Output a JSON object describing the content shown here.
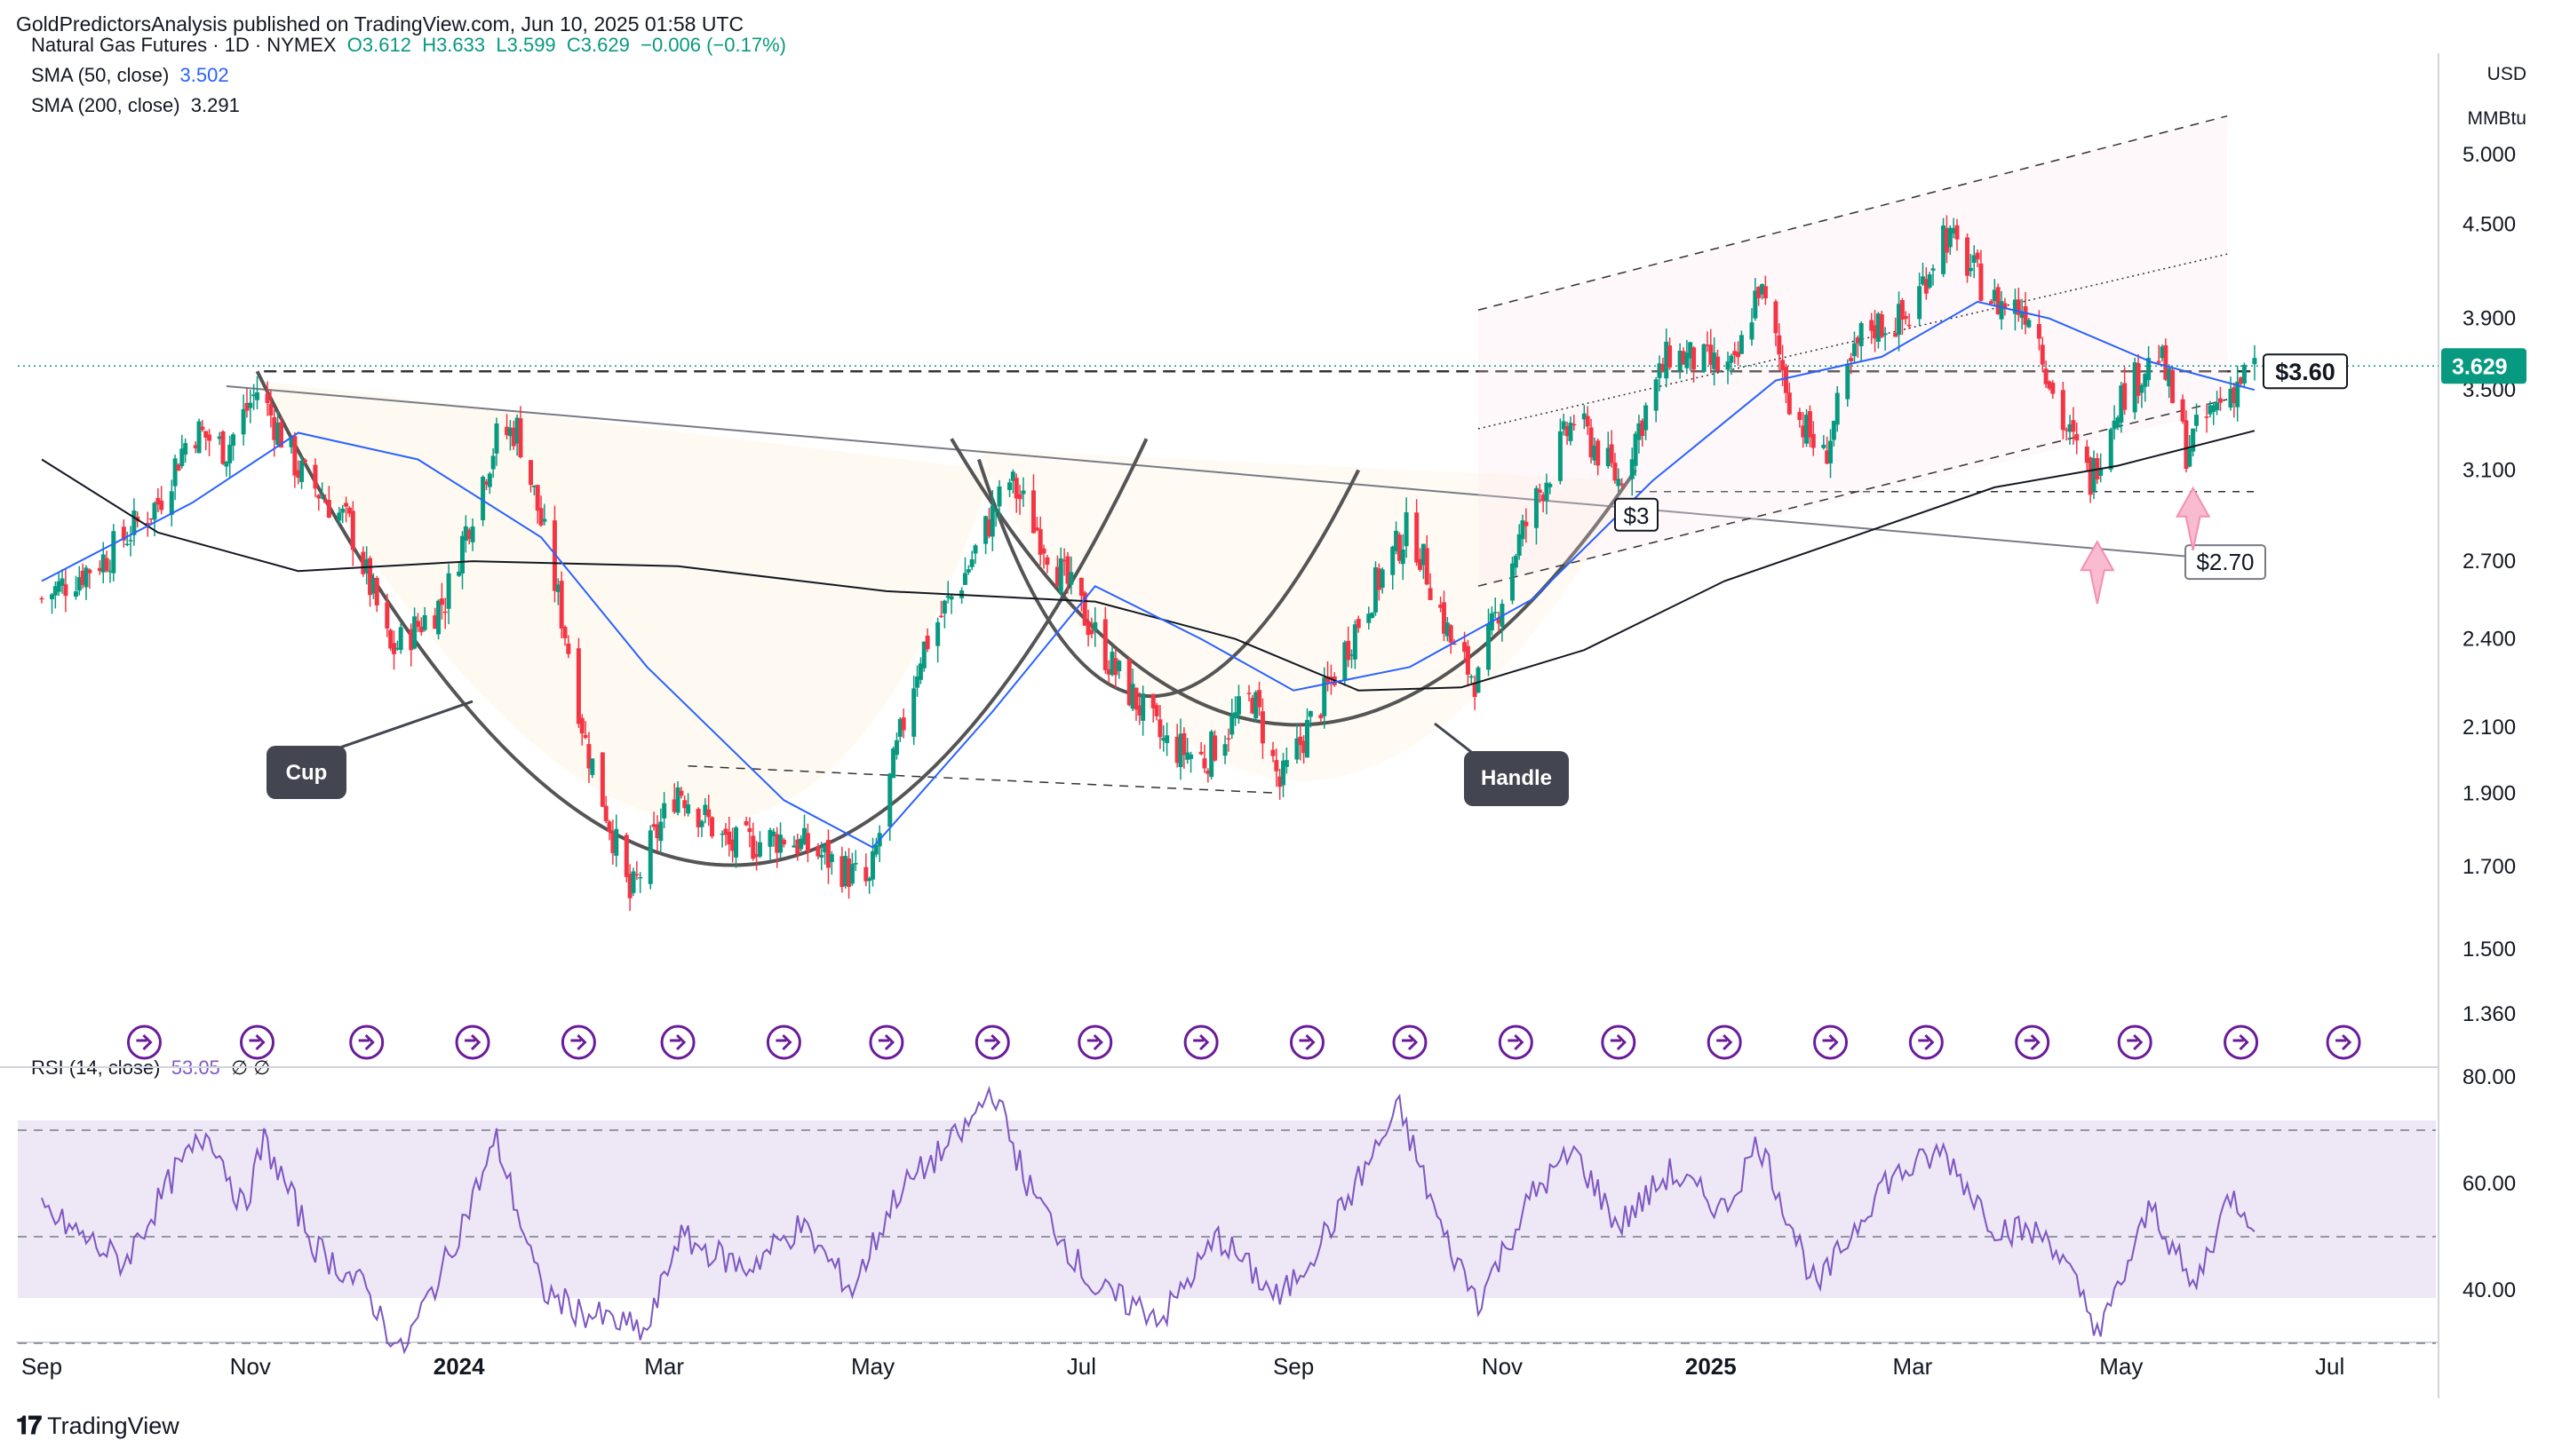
{
  "publisher": "GoldPredictorsAnalysis published on TradingView.com, Jun 10, 2025 01:58 UTC",
  "legend": {
    "symbol_line": "Natural Gas Futures · 1D · NYMEX",
    "open": "O3.612",
    "high": "H3.633",
    "low": "L3.599",
    "close": "C3.629",
    "change": "−0.006 (−0.17%)",
    "sma50_label": "SMA (50, close)",
    "sma50_value": "3.502",
    "sma200_label": "SMA (200, close)",
    "sma200_value": "3.291",
    "rsi_label": "RSI (14, close)",
    "rsi_value": "53.05",
    "rsi_extra": "∅  ∅"
  },
  "currency": "USD",
  "unit": "MMBtu",
  "footer_brand": "TradingView",
  "colors": {
    "up": "#089981",
    "down": "#f23645",
    "sma50": "#2962ff",
    "sma200": "#131722",
    "rsi": "#7e57c2",
    "rsi_band": "#ede7f6",
    "accent_price": "#089981"
  },
  "chart_data": {
    "type": "candlestick",
    "symbol": "Natural Gas Futures",
    "timeframe": "1D",
    "exchange": "NYMEX",
    "price_axis": {
      "scale": "log",
      "ticks": [
        "5.000",
        "4.500",
        "3.900",
        "3.500",
        "3.100",
        "2.700",
        "2.400",
        "2.100",
        "1.900",
        "1.700",
        "1.500",
        "1.360"
      ],
      "current_price": "3.629"
    },
    "time_axis": [
      "Sep",
      "Nov",
      "2024",
      "Mar",
      "May",
      "Jul",
      "Sep",
      "Nov",
      "2025",
      "Mar",
      "May",
      "Jul"
    ],
    "close_path": [
      {
        "t": "2023-09-01",
        "v": 2.55
      },
      {
        "t": "2023-09-20",
        "v": 2.72
      },
      {
        "t": "2023-10-05",
        "v": 2.95
      },
      {
        "t": "2023-10-15",
        "v": 3.3
      },
      {
        "t": "2023-10-25",
        "v": 3.2
      },
      {
        "t": "2023-11-03",
        "v": 3.5
      },
      {
        "t": "2023-11-15",
        "v": 3.1
      },
      {
        "t": "2023-11-30",
        "v": 2.85
      },
      {
        "t": "2023-12-12",
        "v": 2.35
      },
      {
        "t": "2023-12-28",
        "v": 2.55
      },
      {
        "t": "2024-01-12",
        "v": 3.25
      },
      {
        "t": "2024-01-18",
        "v": 3.3
      },
      {
        "t": "2024-01-30",
        "v": 2.55
      },
      {
        "t": "2024-02-07",
        "v": 2.05
      },
      {
        "t": "2024-02-20",
        "v": 1.62
      },
      {
        "t": "2024-03-05",
        "v": 1.92
      },
      {
        "t": "2024-03-20",
        "v": 1.75
      },
      {
        "t": "2024-04-05",
        "v": 1.78
      },
      {
        "t": "2024-04-18",
        "v": 1.72
      },
      {
        "t": "2024-04-30",
        "v": 1.65
      },
      {
        "t": "2024-05-15",
        "v": 2.35
      },
      {
        "t": "2024-05-28",
        "v": 2.65
      },
      {
        "t": "2024-06-10",
        "v": 3.05
      },
      {
        "t": "2024-06-25",
        "v": 2.65
      },
      {
        "t": "2024-07-10",
        "v": 2.3
      },
      {
        "t": "2024-07-25",
        "v": 2.05
      },
      {
        "t": "2024-08-06",
        "v": 2.0
      },
      {
        "t": "2024-08-20",
        "v": 2.2
      },
      {
        "t": "2024-08-28",
        "v": 1.92
      },
      {
        "t": "2024-09-10",
        "v": 2.2
      },
      {
        "t": "2024-09-25",
        "v": 2.6
      },
      {
        "t": "2024-10-05",
        "v": 2.85
      },
      {
        "t": "2024-10-18",
        "v": 2.35
      },
      {
        "t": "2024-10-25",
        "v": 2.25
      },
      {
        "t": "2024-11-05",
        "v": 2.75
      },
      {
        "t": "2024-11-22",
        "v": 3.35
      },
      {
        "t": "2024-12-05",
        "v": 3.05
      },
      {
        "t": "2024-12-20",
        "v": 3.7
      },
      {
        "t": "2025-01-08",
        "v": 3.6
      },
      {
        "t": "2025-01-15",
        "v": 4.1
      },
      {
        "t": "2025-01-25",
        "v": 3.4
      },
      {
        "t": "2025-02-03",
        "v": 3.15
      },
      {
        "t": "2025-02-15",
        "v": 3.85
      },
      {
        "t": "2025-02-28",
        "v": 3.9
      },
      {
        "t": "2025-03-10",
        "v": 4.45
      },
      {
        "t": "2025-03-25",
        "v": 4.0
      },
      {
        "t": "2025-04-05",
        "v": 3.95
      },
      {
        "t": "2025-04-12",
        "v": 3.4
      },
      {
        "t": "2025-04-22",
        "v": 3.05
      },
      {
        "t": "2025-04-30",
        "v": 3.45
      },
      {
        "t": "2025-05-12",
        "v": 3.7
      },
      {
        "t": "2025-05-20",
        "v": 3.2
      },
      {
        "t": "2025-05-30",
        "v": 3.45
      },
      {
        "t": "2025-06-09",
        "v": 3.63
      }
    ],
    "sma50_path": [
      {
        "t": "2023-09-01",
        "v": 2.62
      },
      {
        "t": "2023-10-15",
        "v": 2.95
      },
      {
        "t": "2023-11-15",
        "v": 3.28
      },
      {
        "t": "2023-12-20",
        "v": 3.15
      },
      {
        "t": "2024-01-25",
        "v": 2.8
      },
      {
        "t": "2024-02-25",
        "v": 2.3
      },
      {
        "t": "2024-04-05",
        "v": 1.88
      },
      {
        "t": "2024-05-01",
        "v": 1.75
      },
      {
        "t": "2024-06-05",
        "v": 2.15
      },
      {
        "t": "2024-07-05",
        "v": 2.6
      },
      {
        "t": "2024-08-05",
        "v": 2.4
      },
      {
        "t": "2024-09-01",
        "v": 2.22
      },
      {
        "t": "2024-10-05",
        "v": 2.3
      },
      {
        "t": "2024-11-10",
        "v": 2.55
      },
      {
        "t": "2024-12-15",
        "v": 3.05
      },
      {
        "t": "2025-01-20",
        "v": 3.55
      },
      {
        "t": "2025-02-20",
        "v": 3.68
      },
      {
        "t": "2025-03-20",
        "v": 4.0
      },
      {
        "t": "2025-04-10",
        "v": 3.9
      },
      {
        "t": "2025-05-10",
        "v": 3.65
      },
      {
        "t": "2025-06-09",
        "v": 3.5
      }
    ],
    "sma200_path": [
      {
        "t": "2023-09-01",
        "v": 3.15
      },
      {
        "t": "2023-10-05",
        "v": 2.82
      },
      {
        "t": "2023-11-15",
        "v": 2.66
      },
      {
        "t": "2024-01-05",
        "v": 2.7
      },
      {
        "t": "2024-03-05",
        "v": 2.68
      },
      {
        "t": "2024-05-05",
        "v": 2.58
      },
      {
        "t": "2024-07-05",
        "v": 2.54
      },
      {
        "t": "2024-08-15",
        "v": 2.4
      },
      {
        "t": "2024-09-20",
        "v": 2.22
      },
      {
        "t": "2024-10-20",
        "v": 2.23
      },
      {
        "t": "2024-11-25",
        "v": 2.36
      },
      {
        "t": "2025-01-05",
        "v": 2.62
      },
      {
        "t": "2025-02-15",
        "v": 2.82
      },
      {
        "t": "2025-03-25",
        "v": 3.02
      },
      {
        "t": "2025-04-30",
        "v": 3.12
      },
      {
        "t": "2025-06-09",
        "v": 3.29
      }
    ],
    "rsi": {
      "ticks": [
        "80.00",
        "60.00",
        "40.00"
      ],
      "levels": [
        70,
        50,
        30
      ],
      "path": [
        {
          "t": "2023-09-01",
          "v": 55
        },
        {
          "t": "2023-09-25",
          "v": 45
        },
        {
          "t": "2023-10-10",
          "v": 62
        },
        {
          "t": "2023-10-20",
          "v": 70
        },
        {
          "t": "2023-10-30",
          "v": 55
        },
        {
          "t": "2023-11-05",
          "v": 68
        },
        {
          "t": "2023-11-20",
          "v": 48
        },
        {
          "t": "2023-12-05",
          "v": 40
        },
        {
          "t": "2023-12-15",
          "v": 28
        },
        {
          "t": "2023-12-28",
          "v": 45
        },
        {
          "t": "2024-01-12",
          "v": 68
        },
        {
          "t": "2024-01-25",
          "v": 40
        },
        {
          "t": "2024-02-05",
          "v": 36
        },
        {
          "t": "2024-02-25",
          "v": 32
        },
        {
          "t": "2024-03-05",
          "v": 50
        },
        {
          "t": "2024-03-25",
          "v": 44
        },
        {
          "t": "2024-04-10",
          "v": 52
        },
        {
          "t": "2024-04-25",
          "v": 40
        },
        {
          "t": "2024-05-08",
          "v": 58
        },
        {
          "t": "2024-05-28",
          "v": 70
        },
        {
          "t": "2024-06-05",
          "v": 78
        },
        {
          "t": "2024-06-15",
          "v": 60
        },
        {
          "t": "2024-07-05",
          "v": 40
        },
        {
          "t": "2024-07-25",
          "v": 35
        },
        {
          "t": "2024-08-10",
          "v": 50
        },
        {
          "t": "2024-08-28",
          "v": 38
        },
        {
          "t": "2024-09-15",
          "v": 55
        },
        {
          "t": "2024-10-02",
          "v": 74
        },
        {
          "t": "2024-10-15",
          "v": 50
        },
        {
          "t": "2024-10-25",
          "v": 38
        },
        {
          "t": "2024-11-10",
          "v": 58
        },
        {
          "t": "2024-11-22",
          "v": 66
        },
        {
          "t": "2024-12-05",
          "v": 52
        },
        {
          "t": "2024-12-20",
          "v": 62
        },
        {
          "t": "2025-01-05",
          "v": 55
        },
        {
          "t": "2025-01-15",
          "v": 68
        },
        {
          "t": "2025-02-01",
          "v": 40
        },
        {
          "t": "2025-02-20",
          "v": 60
        },
        {
          "t": "2025-03-10",
          "v": 66
        },
        {
          "t": "2025-03-25",
          "v": 52
        },
        {
          "t": "2025-04-10",
          "v": 50
        },
        {
          "t": "2025-04-25",
          "v": 32
        },
        {
          "t": "2025-05-10",
          "v": 56
        },
        {
          "t": "2025-05-22",
          "v": 40
        },
        {
          "t": "2025-06-02",
          "v": 58
        },
        {
          "t": "2025-06-09",
          "v": 53
        }
      ]
    },
    "annotations": [
      {
        "type": "label",
        "text": "Cup"
      },
      {
        "type": "label",
        "text": "Handle"
      },
      {
        "type": "price_label",
        "text": "$3.60",
        "value": 3.6
      },
      {
        "type": "price_label",
        "text": "$3",
        "value": 3.0
      },
      {
        "type": "price_label",
        "text": "$2.70",
        "value": 2.7
      }
    ]
  }
}
